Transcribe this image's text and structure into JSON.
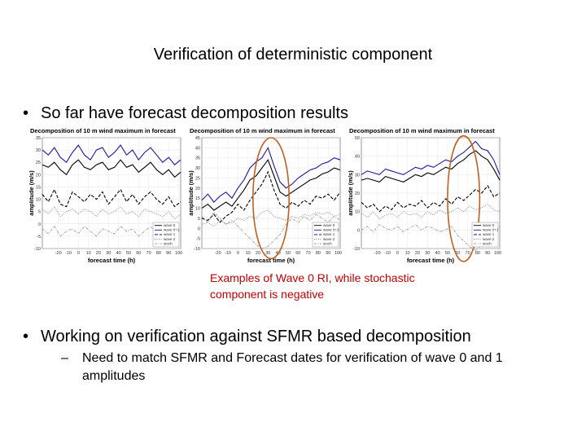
{
  "slide": {
    "title": "Verification of deterministic component",
    "bullet1": "So far have forecast decomposition results",
    "caption_line1": "Examples of Wave 0 RI, while stochastic",
    "caption_line2": "component is negative",
    "bullet2": "Working on verification against SFMR based decomposition",
    "sub_bullet": "Need to match SFMR and Forecast dates for verification of wave 0 and 1 amplitudes",
    "bullet_char": "•",
    "dash_char": "–"
  },
  "colors": {
    "caption": "#c00000",
    "highlight_ellipse": "#c06020",
    "wave0_plus1": "#1a1aa0"
  },
  "chart_data": [
    {
      "type": "line",
      "title": "Decomposition of 10 m wind maximum in forecast",
      "xlabel": "forecast time (h)",
      "ylabel": "amplitude (m/s)",
      "xlim": [
        -36,
        102
      ],
      "ylim": [
        -10,
        35
      ],
      "x_ticks": [
        "-20",
        "-10",
        "0",
        "10",
        "20",
        "30",
        "40",
        "50",
        "60",
        "70",
        "80",
        "90",
        "100"
      ],
      "y_ticks": [
        "-10",
        "-5",
        "0",
        "5",
        "10",
        "15",
        "20",
        "25",
        "30",
        "35"
      ],
      "legend": [
        "wave 0",
        "wave 0+1",
        "wave 1",
        "wave 2",
        "stoch"
      ],
      "highlight": null,
      "series": [
        {
          "name": "wave 0+1",
          "x": [
            -36,
            -30,
            -24,
            -18,
            -12,
            -6,
            0,
            6,
            12,
            18,
            24,
            30,
            36,
            42,
            48,
            54,
            60,
            66,
            72,
            78,
            84,
            90,
            96,
            102
          ],
          "values": [
            30,
            28,
            31,
            27,
            25,
            29,
            32,
            28,
            26,
            30,
            31,
            27,
            29,
            32,
            28,
            30,
            26,
            29,
            31,
            28,
            25,
            27,
            24,
            26
          ]
        },
        {
          "name": "wave 0",
          "x": [
            -36,
            -30,
            -24,
            -18,
            -12,
            -6,
            0,
            6,
            12,
            18,
            24,
            30,
            36,
            42,
            48,
            54,
            60,
            66,
            72,
            78,
            84,
            90,
            96,
            102
          ],
          "values": [
            24,
            23,
            25,
            22,
            20,
            24,
            26,
            23,
            22,
            24,
            25,
            22,
            23,
            26,
            23,
            24,
            21,
            23,
            25,
            22,
            20,
            22,
            19,
            21
          ]
        },
        {
          "name": "wave 1",
          "x": [
            -36,
            -30,
            -24,
            -18,
            -12,
            -6,
            0,
            6,
            12,
            18,
            24,
            30,
            36,
            42,
            48,
            54,
            60,
            66,
            72,
            78,
            84,
            90,
            96,
            102
          ],
          "values": [
            12,
            9,
            14,
            8,
            7,
            13,
            11,
            9,
            12,
            10,
            13,
            8,
            11,
            14,
            9,
            12,
            8,
            11,
            13,
            10,
            8,
            11,
            7,
            9
          ]
        },
        {
          "name": "wave 2",
          "x": [
            -36,
            -30,
            -24,
            -18,
            -12,
            -6,
            0,
            6,
            12,
            18,
            24,
            30,
            36,
            42,
            48,
            54,
            60,
            66,
            72,
            78,
            84,
            90,
            96,
            102
          ],
          "values": [
            6,
            4,
            7,
            3,
            5,
            6,
            4,
            6,
            5,
            3,
            6,
            4,
            5,
            7,
            4,
            5,
            3,
            6,
            5,
            4,
            3,
            5,
            2,
            4
          ]
        },
        {
          "name": "stoch",
          "x": [
            -36,
            -30,
            -24,
            -18,
            -12,
            -6,
            0,
            6,
            12,
            18,
            24,
            30,
            36,
            42,
            48,
            54,
            60,
            66,
            72,
            78,
            84,
            90,
            96,
            102
          ],
          "values": [
            -2,
            -4,
            -1,
            -5,
            -3,
            -2,
            -4,
            -1,
            -3,
            -5,
            -2,
            -3,
            -4,
            -1,
            -3,
            -2,
            -5,
            -3,
            -1,
            -4,
            -2,
            -3,
            -5,
            -2
          ]
        }
      ]
    },
    {
      "type": "line",
      "title": "Decomposition of 10 m wind maximum in forecast",
      "xlabel": "forecast time (h)",
      "ylabel": "amplitude (m/s)",
      "xlim": [
        -36,
        102
      ],
      "ylim": [
        -10,
        45
      ],
      "x_ticks": [
        "-20",
        "-10",
        "0",
        "10",
        "20",
        "30",
        "40",
        "50",
        "60",
        "70",
        "80",
        "90",
        "100"
      ],
      "y_ticks": [
        "-10",
        "-5",
        "0",
        "5",
        "10",
        "15",
        "20",
        "25",
        "30",
        "35",
        "40",
        "45"
      ],
      "legend": [
        "wave 0",
        "wave 0+1",
        "wave 1",
        "wave 2",
        "stoch"
      ],
      "highlight": {
        "x_center": 33,
        "x_halfwidth": 18,
        "y_center": 15,
        "y_halfwidth": 30
      },
      "series": [
        {
          "name": "wave 0+1",
          "x": [
            -36,
            -30,
            -24,
            -18,
            -12,
            -6,
            0,
            6,
            12,
            18,
            24,
            30,
            36,
            42,
            48,
            54,
            60,
            66,
            72,
            78,
            84,
            90,
            96,
            102
          ],
          "values": [
            14,
            17,
            13,
            16,
            18,
            15,
            20,
            24,
            30,
            33,
            35,
            40,
            31,
            23,
            20,
            22,
            25,
            27,
            29,
            30,
            32,
            33,
            35,
            34
          ]
        },
        {
          "name": "wave 0",
          "x": [
            -36,
            -30,
            -24,
            -18,
            -12,
            -6,
            0,
            6,
            12,
            18,
            24,
            30,
            36,
            42,
            48,
            54,
            60,
            66,
            72,
            78,
            84,
            90,
            96,
            102
          ],
          "values": [
            10,
            12,
            9,
            11,
            13,
            11,
            15,
            19,
            24,
            26,
            30,
            34,
            26,
            18,
            16,
            18,
            20,
            22,
            24,
            25,
            27,
            28,
            30,
            29
          ]
        },
        {
          "name": "wave 1",
          "x": [
            -36,
            -30,
            -24,
            -18,
            -12,
            -6,
            0,
            6,
            12,
            18,
            24,
            30,
            36,
            42,
            48,
            54,
            60,
            66,
            72,
            78,
            84,
            90,
            96,
            102
          ],
          "values": [
            5,
            4,
            7,
            3,
            6,
            8,
            12,
            9,
            14,
            18,
            22,
            28,
            19,
            12,
            10,
            13,
            11,
            14,
            12,
            16,
            15,
            17,
            14,
            18
          ]
        },
        {
          "name": "wave 2",
          "x": [
            -36,
            -30,
            -24,
            -18,
            -12,
            -6,
            0,
            6,
            12,
            18,
            24,
            30,
            36,
            42,
            48,
            54,
            60,
            66,
            72,
            78,
            84,
            90,
            96,
            102
          ],
          "values": [
            2,
            3,
            1,
            4,
            2,
            3,
            5,
            4,
            6,
            5,
            8,
            9,
            6,
            5,
            4,
            6,
            5,
            7,
            6,
            8,
            7,
            8,
            6,
            7
          ]
        },
        {
          "name": "stoch",
          "x": [
            -36,
            -30,
            -24,
            -18,
            -12,
            -6,
            0,
            6,
            12,
            18,
            24,
            30,
            36,
            42,
            48,
            54,
            60,
            66,
            72,
            78,
            84,
            90,
            96,
            102
          ],
          "values": [
            6,
            3,
            8,
            5,
            2,
            4,
            1,
            -2,
            -5,
            -8,
            -10,
            -9,
            -6,
            -3,
            2,
            5,
            3,
            6,
            4,
            7,
            5,
            3,
            6,
            4
          ]
        }
      ]
    },
    {
      "type": "line",
      "title": "Decomposition of 10 m wind maximum in forecast",
      "xlabel": "forecast time (h)",
      "ylabel": "amplitude (m/s)",
      "xlim": [
        -36,
        102
      ],
      "ylim": [
        -10,
        50
      ],
      "x_ticks": [
        "-20",
        "-10",
        "0",
        "10",
        "20",
        "30",
        "40",
        "50",
        "60",
        "70",
        "80",
        "90",
        "100"
      ],
      "y_ticks": [
        "-10",
        "0",
        "10",
        "20",
        "30",
        "40",
        "50"
      ],
      "legend": [
        "wave 0",
        "wave 0+1",
        "wave 1",
        "wave 2",
        "stoch"
      ],
      "highlight": {
        "x_center": 66,
        "x_halfwidth": 16,
        "y_center": 17,
        "y_halfwidth": 34
      },
      "series": [
        {
          "name": "wave 0+1",
          "x": [
            -36,
            -30,
            -24,
            -18,
            -12,
            -6,
            0,
            6,
            12,
            18,
            24,
            30,
            36,
            42,
            48,
            54,
            60,
            66,
            72,
            78,
            84,
            90,
            96,
            102
          ],
          "values": [
            30,
            32,
            31,
            30,
            33,
            32,
            31,
            30,
            32,
            34,
            33,
            35,
            34,
            36,
            38,
            37,
            40,
            42,
            45,
            48,
            44,
            43,
            38,
            30
          ]
        },
        {
          "name": "wave 0",
          "x": [
            -36,
            -30,
            -24,
            -18,
            -12,
            -6,
            0,
            6,
            12,
            18,
            24,
            30,
            36,
            42,
            48,
            54,
            60,
            66,
            72,
            78,
            84,
            90,
            96,
            102
          ],
          "values": [
            27,
            28,
            27,
            26,
            29,
            28,
            27,
            26,
            28,
            30,
            29,
            31,
            30,
            32,
            34,
            33,
            36,
            38,
            41,
            43,
            40,
            38,
            33,
            27
          ]
        },
        {
          "name": "wave 1",
          "x": [
            -36,
            -30,
            -24,
            -18,
            -12,
            -6,
            0,
            6,
            12,
            18,
            24,
            30,
            36,
            42,
            48,
            54,
            60,
            66,
            72,
            78,
            84,
            90,
            96,
            102
          ],
          "values": [
            15,
            12,
            14,
            10,
            13,
            11,
            15,
            12,
            14,
            13,
            16,
            12,
            15,
            13,
            17,
            14,
            18,
            16,
            19,
            22,
            20,
            24,
            18,
            20
          ]
        },
        {
          "name": "wave 2",
          "x": [
            -36,
            -30,
            -24,
            -18,
            -12,
            -6,
            0,
            6,
            12,
            18,
            24,
            30,
            36,
            42,
            48,
            54,
            60,
            66,
            72,
            78,
            84,
            90,
            96,
            102
          ],
          "values": [
            9,
            7,
            10,
            6,
            8,
            9,
            7,
            10,
            8,
            9,
            7,
            10,
            8,
            11,
            9,
            10,
            12,
            10,
            13,
            11,
            12,
            14,
            11,
            10
          ]
        },
        {
          "name": "stoch",
          "x": [
            -36,
            -30,
            -24,
            -18,
            -12,
            -6,
            0,
            6,
            12,
            18,
            24,
            30,
            36,
            42,
            48,
            54,
            60,
            66,
            72,
            78,
            84,
            90,
            96,
            102
          ],
          "values": [
            0,
            2,
            -1,
            3,
            1,
            0,
            2,
            -1,
            1,
            3,
            0,
            2,
            1,
            -1,
            0,
            2,
            -3,
            -6,
            -9,
            -11,
            -8,
            -4,
            -1,
            2
          ]
        }
      ]
    }
  ]
}
